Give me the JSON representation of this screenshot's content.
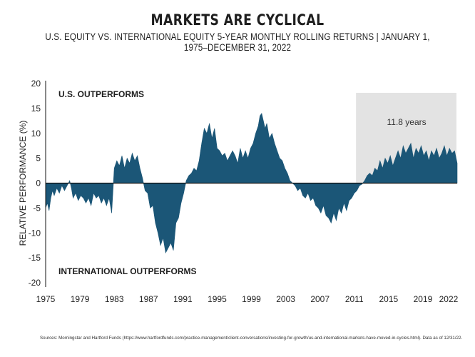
{
  "title": "MARKETS ARE CYCLICAL",
  "subtitle": "U.S. EQUITY VS. INTERNATIONAL EQUITY 5-YEAR MONTHLY ROLLING RETURNS | JANUARY 1, 1975–DECEMBER 31, 2022",
  "source": "Sources: Morningstar and Hartford Funds (https://www.hartfordfunds.com/practice-management/client-conversations/investing-for-growth/us-and-international-markets-have-moved-in-cycles.html). Data as of 12/31/22.",
  "colors": {
    "area": "#1b5677",
    "shade": "#e3e3e3",
    "axis": "#111111"
  },
  "chart_data": {
    "type": "area",
    "title": "MARKETS ARE CYCLICAL",
    "xlabel": "",
    "ylabel": "RELATIVE PERFORMANCE (%)",
    "xlim": [
      1975,
      2023
    ],
    "ylim": [
      -20,
      20
    ],
    "grid": false,
    "x_ticks": [
      1975,
      1979,
      1983,
      1987,
      1991,
      1995,
      1999,
      2003,
      2007,
      2011,
      2015,
      2019,
      2022
    ],
    "y_ticks": [
      20,
      15,
      10,
      5,
      0,
      -5,
      -10,
      -15,
      -20
    ],
    "annotations": {
      "us_label": "U.S. OUTPERFORMS",
      "intl_label": "INTERNATIONAL OUTPERFORMS",
      "shaded_label": "11.8 years",
      "shaded_range": [
        2011.2,
        2023
      ]
    },
    "x": [
      1975.0,
      1975.2,
      1975.4,
      1975.6,
      1975.8,
      1976.0,
      1976.3,
      1976.6,
      1976.9,
      1977.2,
      1977.5,
      1977.8,
      1978.0,
      1978.2,
      1978.5,
      1978.8,
      1979.1,
      1979.4,
      1979.7,
      1980.0,
      1980.3,
      1980.6,
      1980.9,
      1981.2,
      1981.5,
      1981.8,
      1982.1,
      1982.4,
      1982.7,
      1983.0,
      1983.3,
      1983.6,
      1983.9,
      1984.2,
      1984.5,
      1984.8,
      1985.1,
      1985.4,
      1985.7,
      1986.0,
      1986.3,
      1986.6,
      1986.9,
      1987.2,
      1987.5,
      1987.8,
      1988.1,
      1988.4,
      1988.7,
      1989.0,
      1989.3,
      1989.6,
      1989.9,
      1990.2,
      1990.5,
      1990.8,
      1991.1,
      1991.4,
      1991.7,
      1992.0,
      1992.3,
      1992.6,
      1992.9,
      1993.2,
      1993.5,
      1993.8,
      1994.1,
      1994.4,
      1994.7,
      1995.0,
      1995.3,
      1995.6,
      1995.9,
      1996.2,
      1996.5,
      1996.8,
      1997.1,
      1997.4,
      1997.7,
      1998.0,
      1998.3,
      1998.6,
      1998.9,
      1999.2,
      1999.5,
      1999.8,
      2000.0,
      2000.2,
      2000.4,
      2000.6,
      2000.8,
      2001.1,
      2001.4,
      2001.7,
      2002.0,
      2002.3,
      2002.6,
      2002.9,
      2003.2,
      2003.5,
      2003.8,
      2004.1,
      2004.4,
      2004.7,
      2005.0,
      2005.3,
      2005.6,
      2005.9,
      2006.2,
      2006.5,
      2006.8,
      2007.1,
      2007.4,
      2007.7,
      2008.0,
      2008.3,
      2008.6,
      2008.9,
      2009.2,
      2009.5,
      2009.8,
      2010.1,
      2010.4,
      2010.7,
      2011.0,
      2011.3,
      2011.6,
      2011.9,
      2012.2,
      2012.5,
      2012.8,
      2013.1,
      2013.4,
      2013.7,
      2014.0,
      2014.3,
      2014.6,
      2014.9,
      2015.2,
      2015.5,
      2015.8,
      2016.1,
      2016.4,
      2016.7,
      2017.0,
      2017.3,
      2017.6,
      2017.9,
      2018.2,
      2018.5,
      2018.8,
      2019.1,
      2019.4,
      2019.7,
      2020.0,
      2020.3,
      2020.6,
      2020.9,
      2021.2,
      2021.5,
      2021.8,
      2022.1,
      2022.4,
      2022.7,
      2023.0
    ],
    "values": [
      -5.0,
      -4.0,
      -5.5,
      -3.0,
      -1.5,
      -2.5,
      -1.0,
      -2.0,
      -0.5,
      -1.5,
      -0.5,
      0.5,
      -1.0,
      -3.0,
      -2.0,
      -3.5,
      -2.5,
      -3.0,
      -4.0,
      -3.0,
      -4.5,
      -2.0,
      -3.0,
      -2.5,
      -4.0,
      -3.0,
      -4.5,
      -3.0,
      -6.0,
      3.0,
      4.5,
      3.5,
      5.5,
      3.0,
      5.0,
      4.0,
      6.0,
      4.5,
      5.5,
      3.0,
      1.0,
      -1.5,
      -2.0,
      -5.0,
      -4.5,
      -8.0,
      -10.0,
      -12.5,
      -11.0,
      -14.0,
      -13.0,
      -12.0,
      -13.5,
      -8.0,
      -7.0,
      -4.0,
      -2.0,
      0.5,
      1.5,
      2.0,
      3.0,
      2.5,
      4.5,
      8.0,
      11.0,
      10.0,
      12.0,
      9.0,
      11.0,
      7.0,
      6.5,
      5.5,
      6.0,
      4.5,
      5.5,
      6.5,
      5.5,
      4.0,
      7.0,
      5.0,
      6.5,
      5.0,
      7.0,
      8.0,
      10.0,
      11.5,
      13.5,
      14.0,
      12.5,
      11.0,
      12.0,
      9.0,
      10.0,
      8.0,
      6.5,
      5.0,
      4.5,
      3.0,
      2.0,
      0.5,
      0.0,
      -0.5,
      -1.5,
      -1.0,
      -2.5,
      -3.0,
      -2.0,
      -3.5,
      -3.0,
      -4.5,
      -5.0,
      -6.0,
      -4.5,
      -6.5,
      -7.0,
      -8.0,
      -6.0,
      -7.5,
      -5.0,
      -6.0,
      -4.0,
      -5.5,
      -3.5,
      -3.0,
      -2.0,
      -1.5,
      -0.5,
      -0.2,
      0.5,
      1.5,
      2.0,
      1.5,
      3.0,
      2.5,
      4.5,
      3.0,
      5.0,
      4.0,
      5.5,
      3.5,
      5.0,
      6.5,
      5.0,
      7.5,
      6.0,
      7.0,
      8.0,
      5.0,
      7.0,
      6.0,
      7.5,
      5.5,
      6.5,
      4.5,
      6.5,
      5.5,
      7.0,
      5.0,
      6.0,
      7.5,
      5.5,
      7.0,
      6.0,
      6.5,
      4.0
    ]
  }
}
